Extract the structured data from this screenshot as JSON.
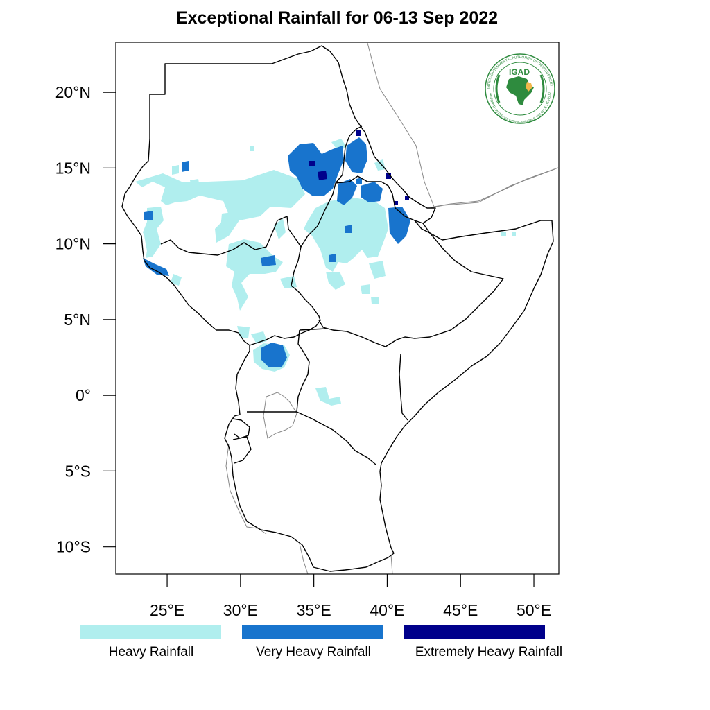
{
  "title": "Exceptional Rainfall for 06-13 Sep 2022",
  "logo": {
    "text": "IGAD",
    "ring_text_top": "INTERGOVERNMENTAL AUTHORITY ON DEVELOPMENT",
    "ring_text_bottom": "AUTORITE INTERGOUVERNEMENTALE POUR LE DEVELOPPEMENT",
    "colors": {
      "green": "#2e8b3e",
      "gold": "#f2b84b"
    }
  },
  "axes": {
    "lon_range": [
      21.5,
      51.7
    ],
    "lat_range": [
      -11.8,
      23.3
    ],
    "lat_ticks": [
      {
        "value": 20,
        "label": "20°N"
      },
      {
        "value": 15,
        "label": "15°N"
      },
      {
        "value": 10,
        "label": "10°N"
      },
      {
        "value": 5,
        "label": "5°N"
      },
      {
        "value": 0,
        "label": "0°"
      },
      {
        "value": -5,
        "label": "5°S"
      },
      {
        "value": -10,
        "label": "10°S"
      }
    ],
    "lon_ticks": [
      {
        "value": 25,
        "label": "25°E"
      },
      {
        "value": 30,
        "label": "30°E"
      },
      {
        "value": 35,
        "label": "35°E"
      },
      {
        "value": 40,
        "label": "40°E"
      },
      {
        "value": 45,
        "label": "45°E"
      },
      {
        "value": 50,
        "label": "50°E"
      }
    ]
  },
  "legend": [
    {
      "label": "Heavy Rainfall",
      "color": "#b0eeee"
    },
    {
      "label": "Very Heavy Rainfall",
      "color": "#1874cd"
    },
    {
      "label": "Extremely Heavy Rainfall",
      "color": "#00008b"
    }
  ]
}
